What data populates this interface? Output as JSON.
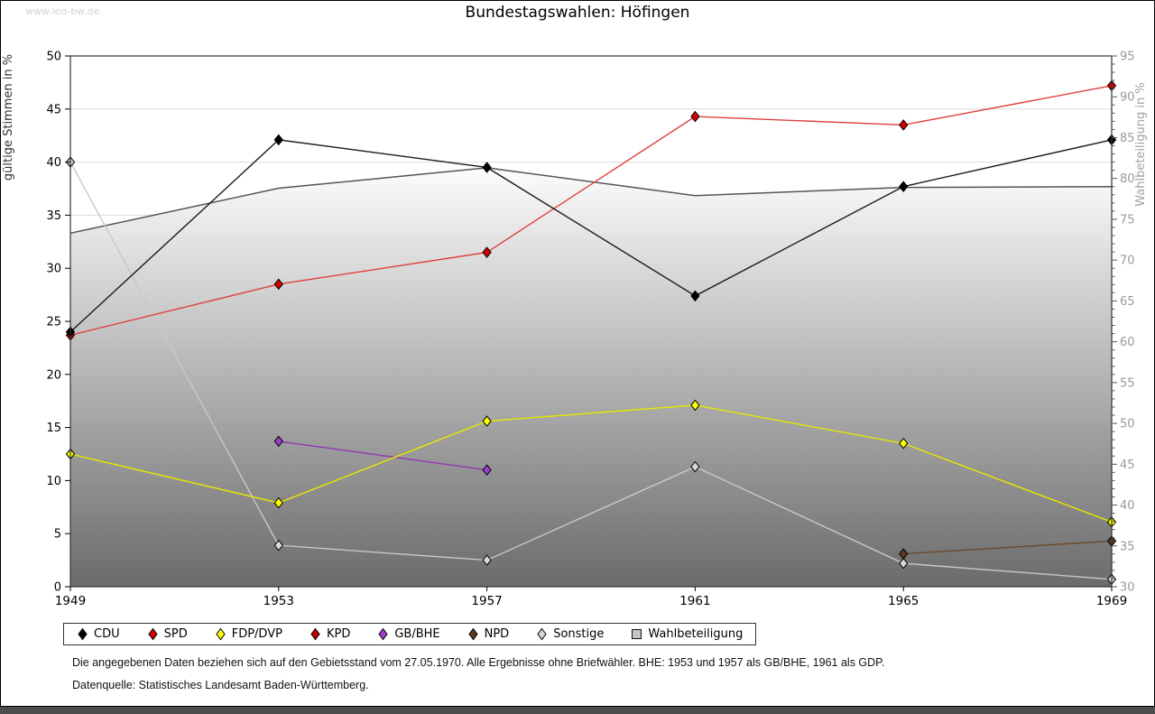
{
  "watermark": "www.leo-bw.de",
  "title": "Bundestagswahlen: Höfingen",
  "footnotes": {
    "line1": "Die angegebenen Daten beziehen sich auf den Gebietsstand vom 27.05.1970. Alle Ergebnisse ohne Briefwähler. BHE: 1953 und 1957 als GB/BHE, 1961 als GDP.",
    "line2": "Datenquelle: Statistisches Landesamt Baden-Württemberg."
  },
  "chart_data": {
    "type": "line",
    "x": [
      1949,
      1953,
      1957,
      1961,
      1965,
      1969
    ],
    "left_axis": {
      "label": "gültige Stimmen in %",
      "min": 0,
      "max": 50,
      "tick_step": 5
    },
    "right_axis": {
      "label": "Wahlbeteiligung in %",
      "min": 30,
      "max": 95,
      "tick_step": 5,
      "minor_tick_step": 1
    },
    "grid": true,
    "legend_position": "bottom",
    "series": [
      {
        "name": "CDU",
        "axis": "left",
        "style": "line",
        "marker": "diamond",
        "line_color": "#1a1a1a",
        "marker_color": "#000000",
        "values": [
          24.0,
          42.1,
          39.5,
          27.4,
          37.7,
          42.1
        ]
      },
      {
        "name": "SPD",
        "axis": "left",
        "style": "line",
        "marker": "diamond",
        "line_color": "#e04040",
        "marker_color": "#d40000",
        "values": [
          23.7,
          28.5,
          31.5,
          44.3,
          43.5,
          47.2
        ]
      },
      {
        "name": "FDP/DVP",
        "axis": "left",
        "style": "line",
        "marker": "diamond",
        "line_color": "#e8e800",
        "marker_color": "#ffff00",
        "values": [
          12.5,
          7.9,
          15.6,
          17.1,
          13.5,
          6.1
        ]
      },
      {
        "name": "KPD",
        "axis": "left",
        "style": "line",
        "marker": "diamond",
        "line_color": "#b40000",
        "marker_color": "#c00000",
        "values": [
          null,
          null,
          null,
          null,
          null,
          null
        ]
      },
      {
        "name": "GB/BHE",
        "axis": "left",
        "style": "line",
        "marker": "diamond",
        "line_color": "#9138b4",
        "marker_color": "#9d3fc4",
        "values": [
          null,
          13.7,
          11.0,
          null,
          null,
          null
        ]
      },
      {
        "name": "NPD",
        "axis": "left",
        "style": "line",
        "marker": "diamond",
        "line_color": "#6b4a2b",
        "marker_color": "#5a3a20",
        "values": [
          null,
          null,
          null,
          null,
          3.1,
          4.3
        ]
      },
      {
        "name": "Sonstige",
        "axis": "left",
        "style": "line",
        "marker": "diamond",
        "line_color": "#c8c8c8",
        "marker_color": "#d8d8d8",
        "values": [
          40.0,
          3.9,
          2.5,
          11.3,
          2.2,
          0.7
        ]
      },
      {
        "name": "Wahlbeteiligung",
        "axis": "right",
        "style": "area",
        "marker": "square",
        "line_color": "#555555",
        "marker_color": "#c4c4c4",
        "values": [
          73.3,
          78.8,
          81.3,
          77.9,
          78.9,
          79.0
        ]
      }
    ]
  }
}
